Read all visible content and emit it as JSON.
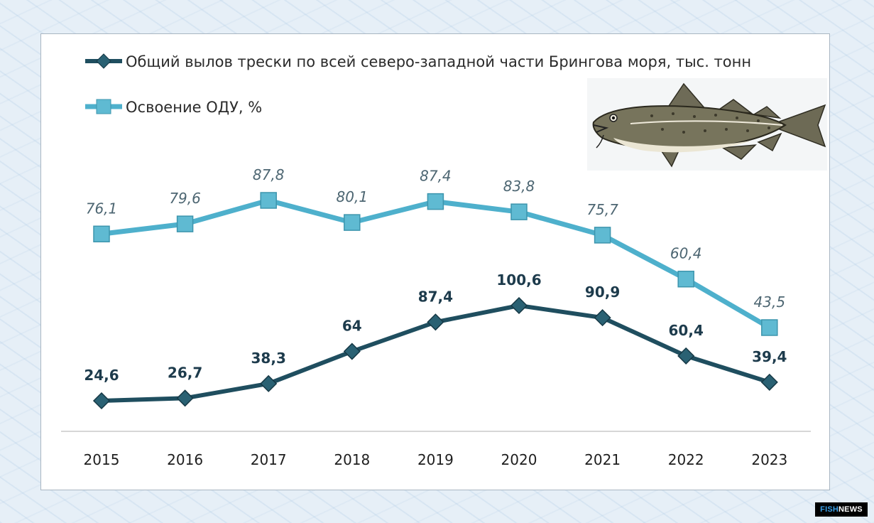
{
  "chart_data": {
    "type": "line",
    "categories": [
      "2015",
      "2016",
      "2017",
      "2018",
      "2019",
      "2020",
      "2021",
      "2022",
      "2023"
    ],
    "series": [
      {
        "name": "Общий вылов трески по всей северо-западной части Брингова моря, тыс. тонн",
        "values": [
          24.6,
          26.7,
          38.3,
          64,
          87.4,
          100.6,
          90.9,
          60.4,
          39.4
        ],
        "labels": [
          "24,6",
          "26,7",
          "38,3",
          "64",
          "87,4",
          "100,6",
          "90,9",
          "60,4",
          "39,4"
        ],
        "color": "#1f4e5f",
        "marker": "diamond"
      },
      {
        "name": "Освоение ОДУ, %",
        "values": [
          76.1,
          79.6,
          87.8,
          80.1,
          87.4,
          83.8,
          75.7,
          60.4,
          43.5
        ],
        "labels": [
          "76,1",
          "79,6",
          "87,8",
          "80,1",
          "87,4",
          "83,8",
          "75,7",
          "60,4",
          "43,5"
        ],
        "color": "#4eb0cc",
        "marker": "square"
      }
    ],
    "legend_position": "top-left",
    "grid": false
  },
  "illustration": {
    "icon": "cod-fish-icon"
  },
  "brand": {
    "part1": "FISH",
    "part2": "NEWS"
  }
}
